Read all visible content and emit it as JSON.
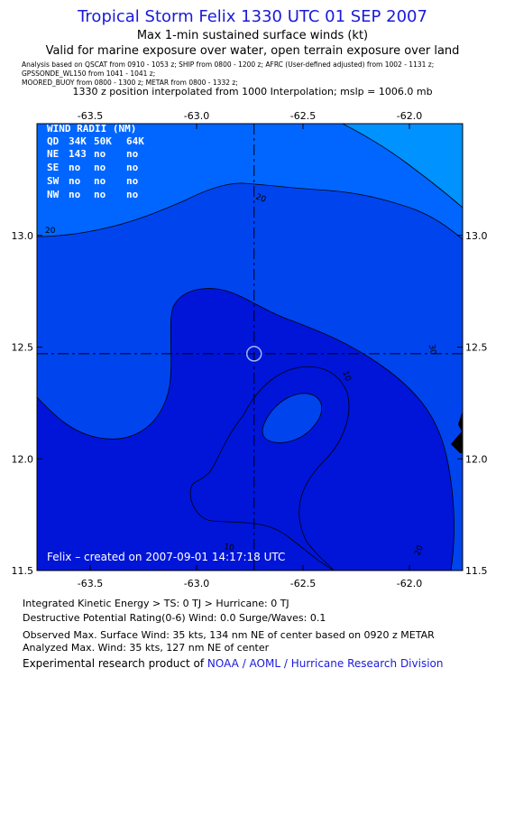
{
  "chart_data": {
    "type": "contour",
    "title": "Tropical Storm Felix 1330 UTC 01 SEP 2007",
    "subtitle_lines": [
      "Max 1-min sustained surface winds (kt)",
      "Valid for marine exposure over water, open terrain exposure over land"
    ],
    "analysis_sources": [
      "Analysis based on  QSCAT from 0910 - 1053 z;  SHIP from 0800 - 1200 z;  AFRC (User-defined adjusted) from 1002 - 1131 z;",
      "GPSSONDE_WL150 from 1041 - 1041 z;",
      "MOORED_BUOY from 0800 - 1300 z;  METAR from 0800 - 1332 z;"
    ],
    "position_note": "1330 z position interpolated from 1000 Interpolation; mslp = 1006.0 mb",
    "xlim": [
      -63.75,
      -61.75
    ],
    "ylim": [
      11.5,
      13.5
    ],
    "x_ticks": [
      "-63.5",
      "-63.0",
      "-62.5",
      "-62.0"
    ],
    "y_ticks": [
      "11.5",
      "12.0",
      "12.5",
      "13.0"
    ],
    "x_tick_values": [
      -63.5,
      -63.0,
      -62.5,
      -62.0
    ],
    "y_tick_values": [
      11.5,
      12.0,
      12.5,
      13.0
    ],
    "center": {
      "lon": -62.73,
      "lat": 12.47
    },
    "contour_labels": [
      "20",
      "20",
      "10",
      "10",
      "20",
      "30"
    ],
    "wind_radii": {
      "header": "WIND RADII (NM)",
      "columns": [
        "QD",
        "34K",
        "50K",
        "64K"
      ],
      "rows": [
        [
          "NE",
          "143",
          "no",
          "no"
        ],
        [
          "SE",
          "no",
          "no",
          "no"
        ],
        [
          "SW",
          "no",
          "no",
          "no"
        ],
        [
          "NW",
          "no",
          "no",
          "no"
        ]
      ]
    },
    "credit": "Felix – created on 2007-09-01 14:17:18 UTC",
    "colors": {
      "level_lt10": "#0015d8",
      "level_10_20": "#0044ee",
      "level_20_30": "#0066ff",
      "level_gt30": "#0092ff",
      "land": "#000000"
    }
  },
  "footer": {
    "ike": "Integrated Kinetic Energy > TS: 0 TJ   > Hurricane: 0 TJ",
    "dpr": "Destructive Potential Rating(0-6)  Wind: 0.0 Surge/Waves: 0.1",
    "observed": "Observed Max. Surface Wind: 35 kts, 134 nm NE of center based on 0920 z METAR",
    "analyzed": "Analyzed Max. Wind: 35 kts, 127 nm NE of center",
    "experimental_prefix": "Experimental research product of ",
    "org": "NOAA / AOML / Hurricane Research Division"
  }
}
